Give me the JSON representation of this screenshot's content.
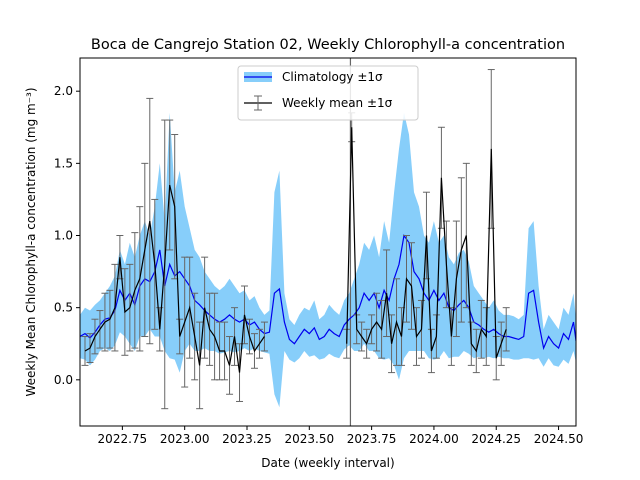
{
  "chart_data": {
    "type": "line",
    "title": "Boca de Cangrejo Station 02, Weekly Chlorophyll-a concentration",
    "xlabel": "Date (weekly interval)",
    "ylabel": "Weekly Mean Chlorophyll-a concentration (mg m⁻³)",
    "xlim": [
      2022.58,
      2024.57
    ],
    "ylim": [
      -0.32,
      2.23
    ],
    "x_ticks": [
      2022.75,
      2023.0,
      2023.25,
      2023.5,
      2023.75,
      2024.0,
      2024.25,
      2024.5
    ],
    "x_tick_labels": [
      "2022.75",
      "2023.00",
      "2023.25",
      "2023.50",
      "2023.75",
      "2024.00",
      "2024.25",
      "2024.50"
    ],
    "y_ticks": [
      0.0,
      0.5,
      1.0,
      1.5,
      2.0
    ],
    "y_tick_labels": [
      "0.0",
      "0.5",
      "1.0",
      "1.5",
      "2.0"
    ],
    "grid": false,
    "legend_position": "top-center",
    "vline_x": 2023.665,
    "colors": {
      "band": "#87cefa",
      "climatology": "#0000ee",
      "weekly": "#000000",
      "errorbar": "#666666",
      "vline": "#666666"
    },
    "series": [
      {
        "name": "Climatology ±1σ",
        "kind": "band",
        "x": [
          2022.58,
          2022.6,
          2022.62,
          2022.64,
          2022.66,
          2022.68,
          2022.7,
          2022.72,
          2022.74,
          2022.76,
          2022.78,
          2022.8,
          2022.82,
          2022.84,
          2022.86,
          2022.88,
          2022.9,
          2022.92,
          2022.94,
          2022.96,
          2022.98,
          2023.0,
          2023.02,
          2023.04,
          2023.06,
          2023.08,
          2023.1,
          2023.12,
          2023.14,
          2023.16,
          2023.18,
          2023.2,
          2023.22,
          2023.24,
          2023.26,
          2023.28,
          2023.3,
          2023.32,
          2023.34,
          2023.36,
          2023.38,
          2023.4,
          2023.42,
          2023.44,
          2023.46,
          2023.48,
          2023.5,
          2023.52,
          2023.54,
          2023.56,
          2023.58,
          2023.6,
          2023.62,
          2023.64,
          2023.66,
          2023.68,
          2023.7,
          2023.72,
          2023.74,
          2023.76,
          2023.78,
          2023.8,
          2023.82,
          2023.84,
          2023.86,
          2023.88,
          2023.9,
          2023.92,
          2023.94,
          2023.96,
          2023.98,
          2024.0,
          2024.02,
          2024.04,
          2024.06,
          2024.08,
          2024.1,
          2024.12,
          2024.14,
          2024.16,
          2024.18,
          2024.2,
          2024.22,
          2024.24,
          2024.26,
          2024.28,
          2024.3,
          2024.32,
          2024.34,
          2024.36,
          2024.38,
          2024.4,
          2024.42,
          2024.44,
          2024.46,
          2024.48,
          2024.5,
          2024.52,
          2024.54,
          2024.56,
          2024.57
        ],
        "mean": [
          0.3,
          0.32,
          0.29,
          0.33,
          0.38,
          0.42,
          0.43,
          0.48,
          0.62,
          0.55,
          0.6,
          0.52,
          0.65,
          0.7,
          0.68,
          0.75,
          0.9,
          0.65,
          0.8,
          0.72,
          0.75,
          0.7,
          0.65,
          0.55,
          0.52,
          0.48,
          0.45,
          0.42,
          0.4,
          0.42,
          0.45,
          0.42,
          0.4,
          0.42,
          0.38,
          0.4,
          0.35,
          0.32,
          0.33,
          0.6,
          0.63,
          0.4,
          0.28,
          0.25,
          0.3,
          0.35,
          0.32,
          0.36,
          0.28,
          0.3,
          0.35,
          0.32,
          0.3,
          0.38,
          0.42,
          0.45,
          0.5,
          0.6,
          0.55,
          0.6,
          0.5,
          0.62,
          0.55,
          0.7,
          0.8,
          1.0,
          0.95,
          0.75,
          0.7,
          0.6,
          0.55,
          0.62,
          0.55,
          0.6,
          0.5,
          0.48,
          0.52,
          0.55,
          0.5,
          0.4,
          0.38,
          0.35,
          0.33,
          0.35,
          0.32,
          0.3,
          0.3,
          0.29,
          0.28,
          0.3,
          0.6,
          0.62,
          0.4,
          0.22,
          0.3,
          0.25,
          0.22,
          0.32,
          0.28,
          0.4,
          0.27
        ],
        "upper": [
          0.45,
          0.5,
          0.48,
          0.52,
          0.55,
          0.6,
          0.65,
          0.72,
          0.9,
          0.8,
          0.95,
          0.85,
          1.0,
          1.1,
          1.0,
          1.2,
          1.5,
          1.1,
          1.85,
          1.3,
          1.45,
          1.2,
          1.05,
          0.9,
          0.85,
          0.75,
          0.7,
          0.65,
          0.62,
          0.65,
          0.7,
          0.65,
          0.6,
          0.62,
          0.55,
          0.58,
          0.5,
          0.45,
          0.48,
          1.3,
          1.45,
          0.6,
          0.42,
          0.38,
          0.45,
          0.5,
          0.48,
          0.55,
          0.42,
          0.45,
          0.52,
          0.48,
          0.45,
          0.55,
          0.6,
          0.7,
          0.8,
          0.95,
          0.9,
          1.0,
          0.85,
          1.1,
          0.95,
          1.3,
          1.6,
          1.85,
          1.7,
          1.3,
          1.2,
          1.0,
          0.95,
          1.1,
          0.95,
          1.0,
          0.85,
          0.8,
          0.88,
          0.9,
          0.82,
          0.65,
          0.6,
          0.55,
          0.5,
          0.55,
          0.48,
          0.45,
          0.45,
          0.44,
          0.42,
          0.45,
          1.05,
          1.1,
          0.65,
          0.35,
          0.45,
          0.4,
          0.35,
          0.5,
          0.45,
          0.6,
          0.42
        ],
        "lower": [
          0.15,
          0.14,
          0.1,
          0.14,
          0.2,
          0.22,
          0.2,
          0.24,
          0.33,
          0.3,
          0.25,
          0.2,
          0.3,
          0.3,
          0.35,
          0.3,
          0.3,
          0.2,
          0.15,
          0.14,
          0.05,
          0.2,
          0.25,
          0.2,
          0.2,
          0.22,
          0.2,
          0.2,
          0.18,
          0.19,
          0.2,
          0.19,
          0.2,
          0.22,
          0.2,
          0.22,
          0.2,
          0.19,
          0.18,
          -0.1,
          -0.19,
          0.2,
          0.14,
          0.12,
          0.15,
          0.2,
          0.16,
          0.17,
          0.14,
          0.15,
          0.18,
          0.16,
          0.15,
          0.21,
          0.24,
          0.2,
          0.2,
          0.25,
          0.2,
          0.2,
          0.15,
          0.14,
          0.15,
          0.1,
          0.0,
          0.15,
          0.2,
          0.2,
          0.2,
          0.2,
          0.15,
          0.14,
          0.15,
          0.2,
          0.15,
          0.16,
          0.16,
          0.2,
          0.18,
          0.15,
          0.16,
          0.15,
          0.16,
          0.15,
          0.16,
          0.15,
          0.15,
          0.14,
          0.14,
          0.15,
          0.15,
          0.14,
          0.15,
          0.09,
          0.15,
          0.1,
          0.09,
          0.14,
          0.11,
          0.2,
          0.12
        ]
      },
      {
        "name": "Weekly mean ±1σ",
        "kind": "errorbar",
        "x": [
          2022.6,
          2022.62,
          2022.64,
          2022.66,
          2022.68,
          2022.7,
          2022.72,
          2022.74,
          2022.76,
          2022.78,
          2022.8,
          2022.82,
          2022.84,
          2022.86,
          2022.88,
          2022.9,
          2022.92,
          2022.94,
          2022.96,
          2022.98,
          2023.0,
          2023.02,
          2023.04,
          2023.06,
          2023.08,
          2023.1,
          2023.12,
          2023.14,
          2023.16,
          2023.18,
          2023.2,
          2023.22,
          2023.24,
          2023.26,
          2023.28,
          2023.3,
          2023.32,
          2023.65,
          2023.67,
          2023.69,
          2023.71,
          2023.73,
          2023.75,
          2023.77,
          2023.79,
          2023.81,
          2023.83,
          2023.85,
          2023.87,
          2023.89,
          2023.91,
          2023.93,
          2023.95,
          2023.97,
          2023.99,
          2024.01,
          2024.03,
          2024.05,
          2024.07,
          2024.09,
          2024.11,
          2024.13,
          2024.15,
          2024.17,
          2024.19,
          2024.21,
          2024.23,
          2024.25,
          2024.27,
          2024.29
        ],
        "y": [
          0.2,
          0.22,
          0.3,
          0.35,
          0.4,
          0.42,
          0.5,
          0.85,
          0.47,
          0.5,
          0.62,
          0.7,
          0.9,
          1.1,
          0.8,
          0.35,
          0.8,
          1.35,
          1.2,
          0.3,
          0.4,
          0.5,
          0.3,
          0.1,
          0.5,
          0.35,
          0.3,
          0.2,
          0.2,
          0.1,
          0.3,
          0.05,
          0.45,
          0.3,
          0.2,
          0.25,
          0.3,
          0.25,
          1.75,
          0.35,
          0.3,
          0.25,
          0.35,
          0.4,
          0.35,
          0.6,
          0.25,
          0.4,
          0.3,
          0.7,
          0.65,
          0.3,
          0.35,
          1.0,
          0.2,
          0.3,
          1.4,
          0.8,
          0.3,
          0.7,
          0.9,
          1.0,
          0.25,
          0.2,
          0.35,
          0.3,
          1.6,
          0.15,
          0.25,
          0.35
        ],
        "err": [
          0.1,
          0.1,
          0.12,
          0.13,
          0.2,
          0.2,
          0.3,
          0.15,
          0.3,
          0.3,
          0.4,
          0.5,
          0.6,
          0.85,
          0.45,
          0.15,
          1.0,
          0.45,
          0.5,
          0.12,
          0.45,
          0.35,
          0.3,
          0.3,
          0.35,
          0.25,
          0.3,
          0.2,
          0.2,
          0.2,
          0.2,
          0.2,
          0.2,
          0.12,
          0.12,
          0.1,
          0.1,
          0.1,
          0.1,
          0.1,
          0.1,
          0.1,
          0.1,
          0.2,
          0.2,
          0.3,
          0.2,
          0.3,
          0.2,
          0.3,
          0.3,
          0.2,
          0.2,
          0.3,
          0.15,
          0.15,
          0.35,
          0.3,
          0.2,
          0.4,
          0.5,
          0.5,
          0.15,
          0.15,
          0.2,
          0.2,
          0.55,
          0.15,
          0.15,
          0.15
        ]
      }
    ]
  }
}
